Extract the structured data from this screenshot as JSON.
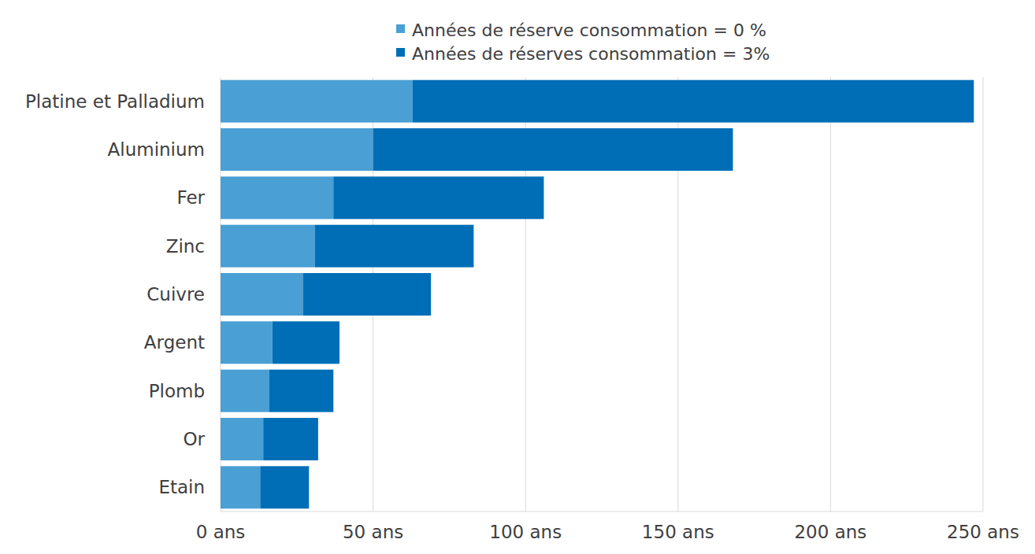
{
  "chart_data": {
    "type": "bar",
    "orientation": "horizontal",
    "stacked": true,
    "grid": true,
    "legend": "top",
    "categories": [
      "Platine et Palladium",
      "Aluminium",
      "Fer",
      "Zinc",
      "Cuivre",
      "Argent",
      "Plomb",
      "Or",
      "Etain"
    ],
    "series": [
      {
        "name": "Années de réserve consommation = 0 %",
        "color": "#4a9fd4",
        "values": [
          63,
          50,
          37,
          31,
          27,
          17,
          16,
          14,
          13
        ]
      },
      {
        "name": "Années de réserves consommation = 3%",
        "color": "#006eb6",
        "values": [
          184,
          118,
          69,
          52,
          42,
          22,
          21,
          18,
          16
        ]
      }
    ],
    "xlim": [
      0,
      250
    ],
    "xticks": [
      {
        "value": 0,
        "label": "0 ans"
      },
      {
        "value": 50,
        "label": "50 ans"
      },
      {
        "value": 100,
        "label": "100 ans"
      },
      {
        "value": 150,
        "label": "150 ans"
      },
      {
        "value": 200,
        "label": "200 ans"
      },
      {
        "value": 250,
        "label": "250 ans"
      }
    ]
  }
}
